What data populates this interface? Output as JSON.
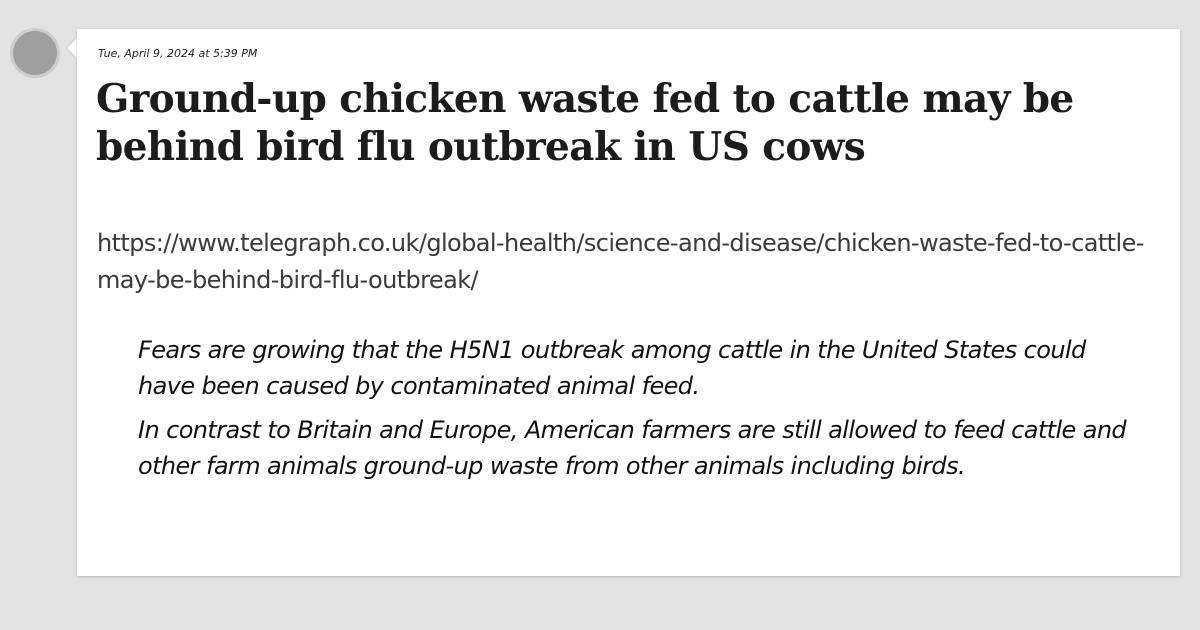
{
  "post": {
    "timestamp": "Tue, April 9, 2024 at 5:39 PM",
    "headline": "Ground-up chicken waste fed to cattle may be behind bird flu outbreak in US cows",
    "url": "https://www.telegraph.co.uk/global-health/science-and-disease/chicken-waste-fed-to-cattle-may-be-behind-bird-flu-outbreak/",
    "quote": [
      "Fears are growing that the H5N1 outbreak among cattle in the United States could have been caused by contaminated animal feed.",
      "In contrast to Britain and Europe, American farmers are still allowed to feed cattle and other farm animals ground-up waste from other animals including birds."
    ]
  },
  "colors": {
    "page_background": "#e3e3e3",
    "card_background": "#ffffff",
    "avatar": "#9f9f9f",
    "text": "#1c1c1c"
  }
}
